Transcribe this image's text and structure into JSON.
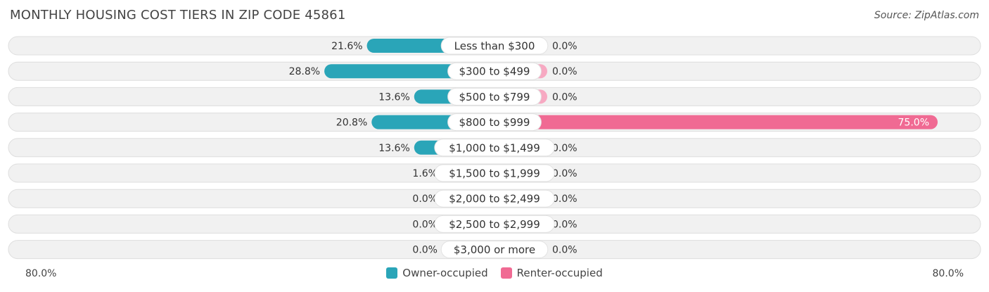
{
  "title": "MONTHLY HOUSING COST TIERS IN ZIP CODE 45861",
  "source": "Source: ZipAtlas.com",
  "colors": {
    "owner": "#2aa5b8",
    "owner_light": "#85ccd6",
    "renter": "#f06a93",
    "renter_light": "#f7a9c2",
    "row_bg": "#f1f1f1",
    "row_border": "#dedede"
  },
  "axis": {
    "left_label": "80.0%",
    "right_label": "80.0%"
  },
  "legend": {
    "owner": "Owner-occupied",
    "renter": "Renter-occupied"
  },
  "chart_data": {
    "type": "bar",
    "orientation": "horizontal-diverging",
    "xlim": [
      -80,
      80
    ],
    "categories": [
      "Less than $300",
      "$300 to $499",
      "$500 to $799",
      "$800 to $999",
      "$1,000 to $1,499",
      "$1,500 to $1,999",
      "$2,000 to $2,499",
      "$2,500 to $2,999",
      "$3,000 or more"
    ],
    "series": [
      {
        "name": "Owner-occupied",
        "values": [
          21.6,
          28.8,
          13.6,
          20.8,
          13.6,
          1.6,
          0.0,
          0.0,
          0.0
        ],
        "labels": [
          "21.6%",
          "28.8%",
          "13.6%",
          "20.8%",
          "13.6%",
          "1.6%",
          "0.0%",
          "0.0%",
          "0.0%"
        ]
      },
      {
        "name": "Renter-occupied",
        "values": [
          0.0,
          0.0,
          0.0,
          75.0,
          0.0,
          0.0,
          0.0,
          0.0,
          0.0
        ],
        "labels": [
          "0.0%",
          "0.0%",
          "0.0%",
          "75.0%",
          "0.0%",
          "0.0%",
          "0.0%",
          "0.0%",
          "0.0%"
        ]
      }
    ]
  }
}
